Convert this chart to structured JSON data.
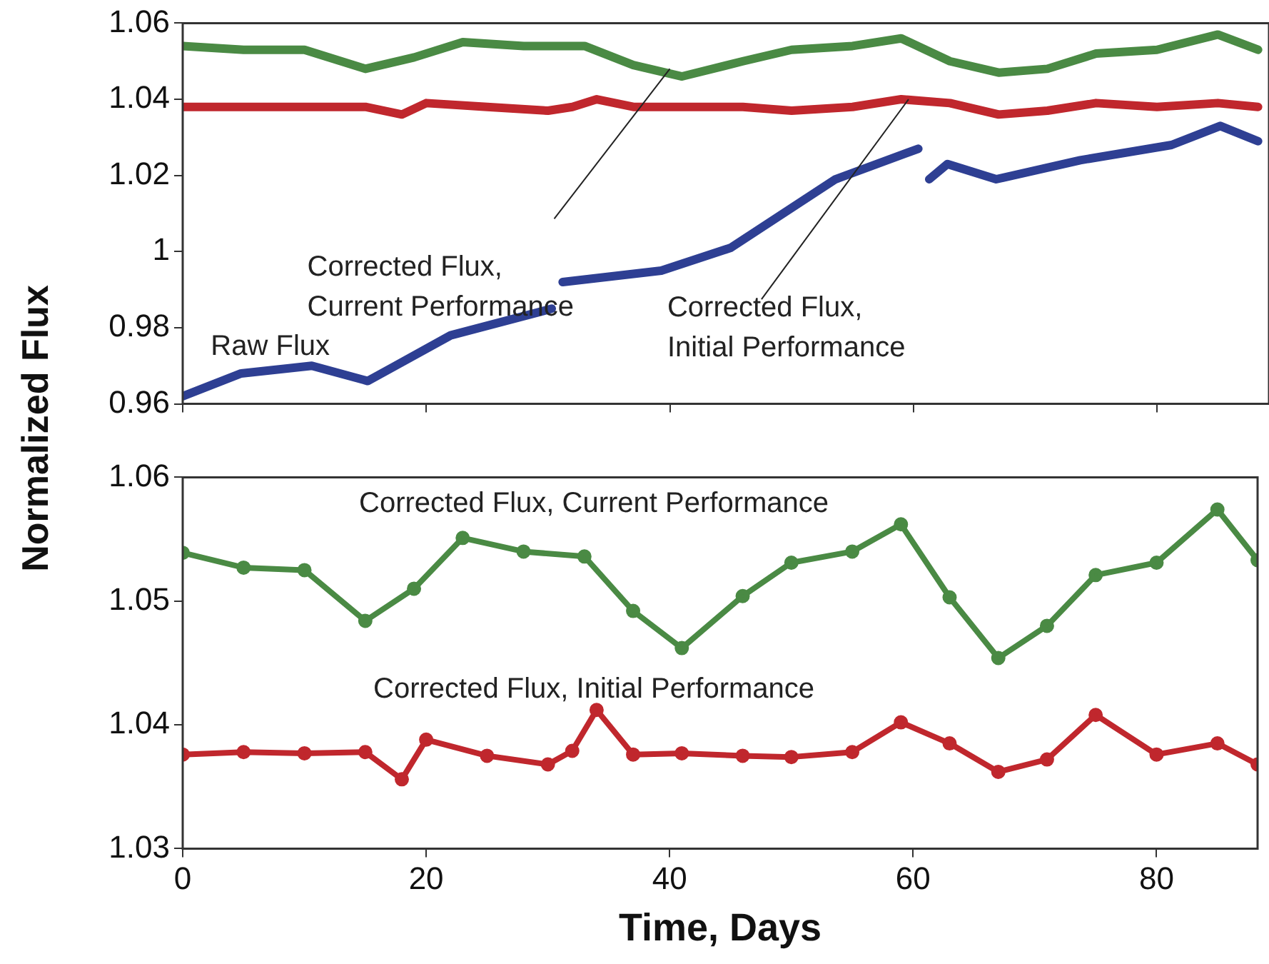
{
  "chart_data": [
    {
      "type": "line",
      "ylabel": "Normalized Flux",
      "xlim": [
        0,
        89.2
      ],
      "xticks": [
        0,
        20,
        40,
        60,
        80
      ],
      "ylim": [
        0.96,
        1.06
      ],
      "yticks": [
        {
          "value": 0.96,
          "label": "0.96"
        },
        {
          "value": 0.98,
          "label": "0.98"
        },
        {
          "value": 1,
          "label": "1"
        },
        {
          "value": 1.02,
          "label": "1.02"
        },
        {
          "value": 1.04,
          "label": "1.04"
        },
        {
          "value": 1.06,
          "label": "1.06"
        }
      ],
      "tick_labels": "y",
      "marker": "none",
      "line_style": "solid",
      "series": [
        {
          "color": "#4a8a44",
          "x": [
            0,
            5,
            10,
            15,
            19,
            23,
            28,
            33,
            37,
            41,
            46,
            50,
            55,
            59,
            63,
            67,
            71,
            75,
            80,
            85,
            88.3
          ],
          "values": [
            1.054,
            1.053,
            1.053,
            1.048,
            1.051,
            1.055,
            1.054,
            1.054,
            1.049,
            1.046,
            1.05,
            1.053,
            1.054,
            1.056,
            1.05,
            1.047,
            1.048,
            1.052,
            1.053,
            1.057,
            1.053
          ]
        },
        {
          "color": "#c0272d",
          "x": [
            0,
            5,
            10,
            15,
            18,
            20,
            25,
            30,
            32,
            34,
            37,
            41,
            46,
            50,
            55,
            59,
            63,
            67,
            71,
            75,
            80,
            85,
            88.3
          ],
          "values": [
            1.038,
            1.038,
            1.038,
            1.038,
            1.036,
            1.039,
            1.038,
            1.037,
            1.038,
            1.04,
            1.038,
            1.038,
            1.038,
            1.037,
            1.038,
            1.04,
            1.039,
            1.036,
            1.037,
            1.039,
            1.038,
            1.039,
            1.038
          ]
        },
        {
          "color": "#2e3f93",
          "x": [
            0,
            4.8,
            10.6,
            15.2,
            22,
            30.3,
            30.8,
            31.2,
            39.3,
            45,
            53.6,
            60.4,
            60.9,
            61.3,
            62.8,
            66.8,
            73.7,
            81.2,
            85.2,
            88.3
          ],
          "values": [
            0.962,
            0.968,
            0.97,
            0.966,
            0.978,
            0.985,
            null,
            0.992,
            0.995,
            1.001,
            1.019,
            1.027,
            null,
            1.019,
            1.023,
            1.019,
            1.024,
            1.028,
            1.033,
            1.029
          ]
        }
      ],
      "annotations": [
        {
          "text": "Raw Flux",
          "x": 5,
          "y": 0.968
        },
        {
          "text": "Corrected Flux,\nCurrent Performance",
          "x": 40,
          "y": 1.048
        },
        {
          "text": "Corrected Flux,\nInitial Performance",
          "x": 59.6,
          "y": 1.04
        }
      ]
    },
    {
      "type": "line",
      "xlabel": "Time, Days",
      "xlim": [
        0,
        88.3
      ],
      "xticks": [
        0,
        20,
        40,
        60,
        80
      ],
      "ylim": [
        1.03,
        1.06
      ],
      "yticks": [
        1.03,
        1.04,
        1.05,
        1.06
      ],
      "marker": "circle",
      "line_style": "solid",
      "series": [
        {
          "color": "#4a8a44",
          "x": [
            0,
            5,
            10,
            15,
            19,
            23,
            28,
            33,
            37,
            41,
            46,
            50,
            55,
            59,
            63,
            67,
            71,
            75,
            80,
            85,
            88.3
          ],
          "values": [
            1.0539,
            1.0527,
            1.0525,
            1.0484,
            1.051,
            1.0551,
            1.054,
            1.0536,
            1.0492,
            1.0462,
            1.0504,
            1.0531,
            1.054,
            1.0562,
            1.0503,
            1.0454,
            1.048,
            1.0521,
            1.0531,
            1.0574,
            1.0533
          ]
        },
        {
          "color": "#c0272d",
          "x": [
            0,
            5,
            10,
            15,
            18,
            20,
            25,
            30,
            32,
            34,
            37,
            41,
            46,
            50,
            55,
            59,
            63,
            67,
            71,
            75,
            80,
            85,
            88.3
          ],
          "values": [
            1.0376,
            1.0378,
            1.0377,
            1.0378,
            1.0356,
            1.0388,
            1.0375,
            1.0368,
            1.0379,
            1.0412,
            1.0376,
            1.0377,
            1.0375,
            1.0374,
            1.0378,
            1.0402,
            1.0385,
            1.0362,
            1.0372,
            1.0408,
            1.0376,
            1.0385,
            1.0368
          ]
        }
      ],
      "annotations": [
        "Corrected Flux, Current Performance",
        "Corrected Flux, Initial Performance"
      ]
    }
  ]
}
